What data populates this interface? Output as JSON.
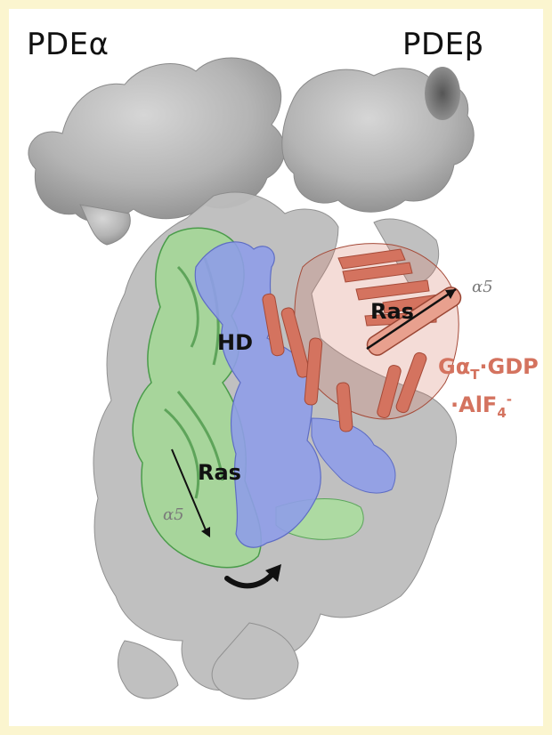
{
  "labels": {
    "pde_alpha": "PDEα",
    "pde_beta": "PDEβ",
    "hd": "HD",
    "ras_left": "Ras",
    "ras_right": "Ras",
    "alpha5_left": "α5",
    "alpha5_right": "α5",
    "g_line1_prefix": "Gα",
    "g_line1_sub": "T",
    "g_line1_suffix": "·GDP",
    "g_line2_prefix": "·AlF",
    "g_line2_sub": "4",
    "g_line2_sup": "-"
  },
  "colors": {
    "frame": "#fbf5cf",
    "density_gray": "#b9b9b9",
    "green_subunit": "#9fdc8f",
    "blue_density": "#8f9de8",
    "salmon_subunit": "#d4735f"
  }
}
